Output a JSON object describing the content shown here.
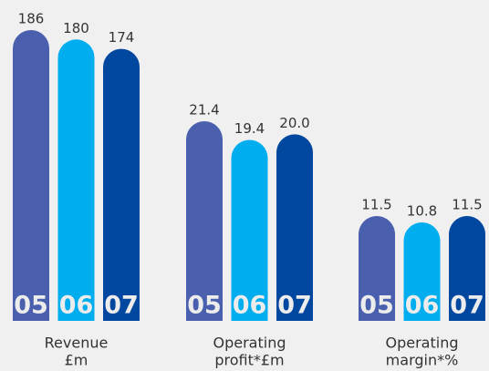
{
  "chart_data": [
    {
      "type": "bar",
      "title_lines": [
        "Revenue",
        "£m"
      ],
      "categories": [
        "05",
        "06",
        "07"
      ],
      "values": [
        186,
        180,
        174
      ],
      "colors": [
        "#4a60ae",
        "#00adef",
        "#0047a0"
      ]
    },
    {
      "type": "bar",
      "title_lines": [
        "Operating",
        "profit*£m"
      ],
      "categories": [
        "05",
        "06",
        "07"
      ],
      "values": [
        21.4,
        19.4,
        20
      ],
      "value_labels": [
        "21.4",
        "19.4",
        "20.0"
      ],
      "colors": [
        "#4a60ae",
        "#00adef",
        "#0047a0"
      ]
    },
    {
      "type": "bar",
      "title_lines": [
        "Operating",
        "margin*%"
      ],
      "categories": [
        "05",
        "06",
        "07"
      ],
      "values": [
        11.5,
        10.8,
        11.5
      ],
      "colors": [
        "#4a60ae",
        "#00adef",
        "#0047a0"
      ]
    }
  ]
}
